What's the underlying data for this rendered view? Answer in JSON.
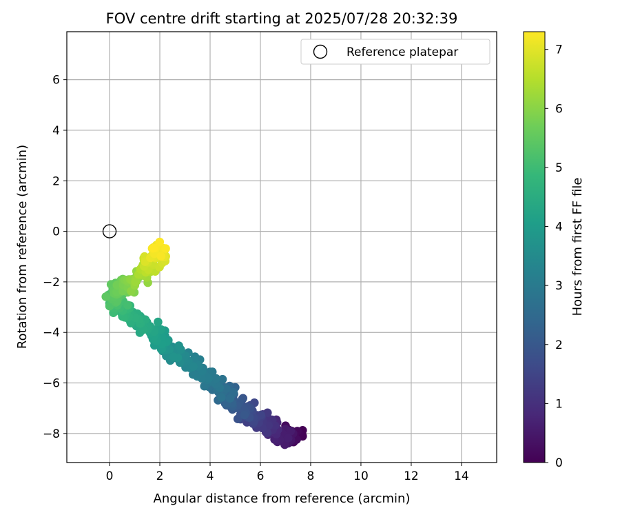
{
  "chart_data": {
    "type": "scatter",
    "title": "FOV centre drift starting at 2025/07/28 20:32:39",
    "xlabel": "Angular distance from reference (arcmin)",
    "ylabel": "Rotation from reference (arcmin)",
    "xlim": [
      -1.7,
      15.4
    ],
    "ylim": [
      -9.15,
      7.9
    ],
    "xticks": [
      0,
      2,
      4,
      6,
      8,
      10,
      12,
      14
    ],
    "yticks": [
      -8,
      -6,
      -4,
      -2,
      0,
      2,
      4,
      6
    ],
    "grid": true,
    "legend": {
      "location": "top-right",
      "entries": [
        "Reference platepar"
      ]
    },
    "reference_point": {
      "x": 0,
      "y": 0,
      "label": "Reference platepar"
    },
    "colorbar": {
      "label": "Hours from first FF file",
      "colormap": "viridis",
      "range": [
        0,
        7.3
      ],
      "ticks": [
        0,
        1,
        2,
        3,
        4,
        5,
        6,
        7
      ]
    },
    "drift_track": {
      "description_keypoints": [
        {
          "hours": 0.0,
          "x": 7.5,
          "y": -8.0
        },
        {
          "hours": 0.4,
          "x": 7.0,
          "y": -8.2
        },
        {
          "hours": 0.8,
          "x": 6.5,
          "y": -7.8
        },
        {
          "hours": 1.2,
          "x": 6.0,
          "y": -7.5
        },
        {
          "hours": 1.6,
          "x": 5.6,
          "y": -7.2
        },
        {
          "hours": 2.0,
          "x": 5.1,
          "y": -6.9
        },
        {
          "hours": 2.4,
          "x": 4.7,
          "y": -6.5
        },
        {
          "hours": 2.8,
          "x": 4.3,
          "y": -6.1
        },
        {
          "hours": 3.2,
          "x": 3.4,
          "y": -5.3
        },
        {
          "hours": 3.6,
          "x": 2.5,
          "y": -4.8
        },
        {
          "hours": 4.0,
          "x": 2.0,
          "y": -4.3
        },
        {
          "hours": 4.4,
          "x": 1.3,
          "y": -3.7
        },
        {
          "hours": 4.8,
          "x": 0.5,
          "y": -3.2
        },
        {
          "hours": 5.2,
          "x": 0.2,
          "y": -2.7
        },
        {
          "hours": 5.6,
          "x": 0.3,
          "y": -2.2
        },
        {
          "hours": 6.0,
          "x": 1.0,
          "y": -2.0
        },
        {
          "hours": 6.4,
          "x": 1.4,
          "y": -1.5
        },
        {
          "hours": 6.8,
          "x": 1.8,
          "y": -1.1
        },
        {
          "hours": 7.3,
          "x": 2.0,
          "y": -0.6
        }
      ],
      "count": 520,
      "scatter_x": 0.35,
      "scatter_y": 0.35
    }
  }
}
